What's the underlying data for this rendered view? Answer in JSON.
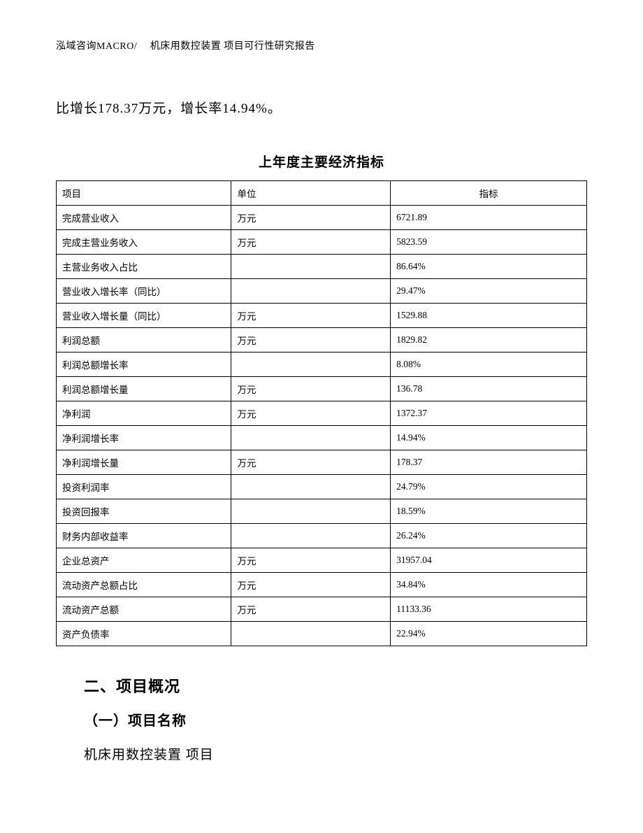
{
  "header": {
    "text": "泓域咨询MACRO/　 机床用数控装置 项目可行性研究报告"
  },
  "body_paragraph": "比增长178.37万元，增长率14.94%。",
  "table": {
    "title": "上年度主要经济指标",
    "columns": [
      "项目",
      "单位",
      "指标"
    ],
    "col_align": [
      "left",
      "left",
      "center"
    ],
    "rows": [
      [
        "完成营业收入",
        "万元",
        "6721.89"
      ],
      [
        "完成主营业务收入",
        "万元",
        "5823.59"
      ],
      [
        "主营业务收入占比",
        "",
        "86.64%"
      ],
      [
        "营业收入增长率（同比）",
        "",
        "29.47%"
      ],
      [
        "营业收入增长量（同比）",
        "万元",
        "1529.88"
      ],
      [
        "利润总额",
        "万元",
        "1829.82"
      ],
      [
        "利润总额增长率",
        "",
        "8.08%"
      ],
      [
        "利润总额增长量",
        "万元",
        "136.78"
      ],
      [
        "净利润",
        "万元",
        "1372.37"
      ],
      [
        "净利润增长率",
        "",
        "14.94%"
      ],
      [
        "净利润增长量",
        "万元",
        "178.37"
      ],
      [
        "投资利润率",
        "",
        "24.79%"
      ],
      [
        "投资回报率",
        "",
        "18.59%"
      ],
      [
        "财务内部收益率",
        "",
        "26.24%"
      ],
      [
        "企业总资产",
        "万元",
        "31957.04"
      ],
      [
        "流动资产总额占比",
        "万元",
        "34.84%"
      ],
      [
        "流动资产总额",
        "万元",
        "11133.36"
      ],
      [
        "资产负债率",
        "",
        "22.94%"
      ]
    ]
  },
  "section": {
    "heading": "二、项目概况",
    "sub_heading": "（一）项目名称",
    "project_name": "机床用数控装置 项目"
  }
}
